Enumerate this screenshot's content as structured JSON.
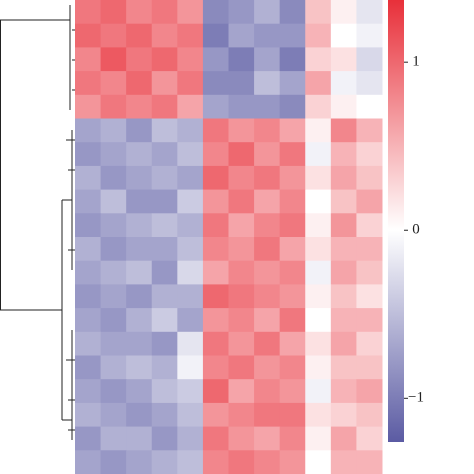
{
  "chart_data": {
    "type": "heatmap",
    "values": [
      [
        0.9,
        1.0,
        0.8,
        0.9,
        0.7,
        -0.9,
        -0.8,
        -0.6,
        -0.9,
        0.4,
        0.1,
        -0.2
      ],
      [
        1.0,
        0.9,
        1.0,
        0.8,
        0.9,
        -1.0,
        -0.7,
        -0.8,
        -0.8,
        0.5,
        0.0,
        -0.1
      ],
      [
        0.8,
        1.1,
        0.9,
        1.0,
        0.8,
        -0.8,
        -1.0,
        -0.7,
        -1.0,
        0.3,
        0.2,
        -0.3
      ],
      [
        0.9,
        0.8,
        1.0,
        0.7,
        0.9,
        -0.9,
        -0.9,
        -0.5,
        -0.7,
        0.6,
        -0.1,
        -0.2
      ],
      [
        0.7,
        0.9,
        0.8,
        0.9,
        0.6,
        -0.7,
        -0.8,
        -0.8,
        -0.9,
        0.3,
        0.1,
        0.0
      ],
      [
        -0.7,
        -0.6,
        -0.8,
        -0.5,
        -0.6,
        0.9,
        0.7,
        0.8,
        0.6,
        0.1,
        0.8,
        0.5
      ],
      [
        -0.8,
        -0.7,
        -0.6,
        -0.7,
        -0.5,
        0.8,
        1.0,
        0.7,
        0.9,
        -0.1,
        0.5,
        0.3
      ],
      [
        -0.6,
        -0.8,
        -0.7,
        -0.6,
        -0.7,
        1.0,
        0.8,
        0.9,
        0.7,
        0.2,
        0.6,
        0.4
      ],
      [
        -0.7,
        -0.5,
        -0.8,
        -0.8,
        -0.4,
        0.7,
        0.9,
        0.6,
        0.8,
        0.0,
        0.4,
        0.6
      ],
      [
        -0.8,
        -0.7,
        -0.6,
        -0.5,
        -0.6,
        0.9,
        0.6,
        0.8,
        0.9,
        0.1,
        0.7,
        0.3
      ],
      [
        -0.6,
        -0.8,
        -0.7,
        -0.7,
        -0.5,
        0.8,
        0.7,
        0.9,
        0.6,
        0.2,
        0.5,
        0.5
      ],
      [
        -0.7,
        -0.6,
        -0.5,
        -0.8,
        -0.3,
        0.6,
        0.8,
        0.7,
        0.8,
        -0.1,
        0.6,
        0.4
      ],
      [
        -0.8,
        -0.7,
        -0.8,
        -0.6,
        -0.6,
        1.0,
        0.9,
        0.8,
        0.7,
        0.1,
        0.4,
        0.2
      ],
      [
        -0.7,
        -0.8,
        -0.6,
        -0.4,
        -0.7,
        0.7,
        0.8,
        0.6,
        0.9,
        0.0,
        0.5,
        0.5
      ],
      [
        -0.6,
        -0.7,
        -0.7,
        -0.8,
        -0.2,
        0.9,
        0.7,
        0.9,
        0.6,
        0.2,
        0.6,
        0.3
      ],
      [
        -0.8,
        -0.6,
        -0.5,
        -0.6,
        -0.1,
        0.8,
        0.9,
        0.7,
        0.8,
        0.1,
        0.4,
        0.4
      ],
      [
        -0.7,
        -0.8,
        -0.7,
        -0.5,
        -0.4,
        1.0,
        0.6,
        0.8,
        0.7,
        -0.1,
        0.5,
        0.6
      ],
      [
        -0.6,
        -0.7,
        -0.8,
        -0.7,
        -0.5,
        0.7,
        0.8,
        0.9,
        0.9,
        0.2,
        0.3,
        0.4
      ],
      [
        -0.8,
        -0.6,
        -0.6,
        -0.8,
        -0.6,
        0.9,
        0.7,
        0.6,
        0.8,
        0.1,
        0.6,
        0.3
      ],
      [
        -0.7,
        -0.8,
        -0.7,
        -0.6,
        -0.5,
        0.8,
        0.9,
        0.8,
        0.7,
        0.0,
        0.5,
        0.5
      ]
    ],
    "zlim": [
      -1.26,
      1.37
    ],
    "zticks": [
      1,
      0,
      {
        "value": -1,
        "label": "−1"
      }
    ],
    "colors": [
      "#5b5ba3",
      "#ffffff",
      "#e8303a"
    ]
  }
}
